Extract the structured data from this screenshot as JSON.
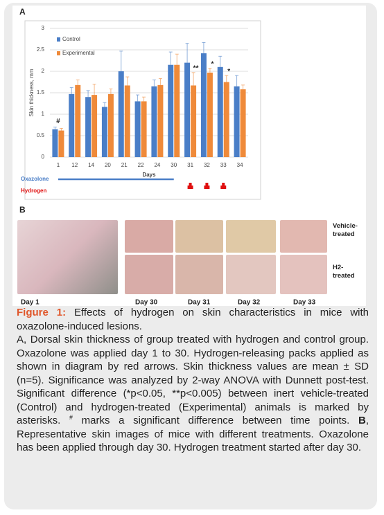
{
  "chart_data": {
    "type": "bar",
    "panel_label": "A",
    "categories": [
      "1",
      "12",
      "14",
      "20",
      "21",
      "22",
      "24",
      "30",
      "31",
      "32",
      "33",
      "34"
    ],
    "series": [
      {
        "name": "Control",
        "color": "#4a7ec7",
        "values": [
          0.65,
          1.47,
          1.4,
          1.17,
          2.0,
          1.3,
          1.65,
          2.15,
          2.2,
          2.42,
          2.1,
          1.65
        ],
        "errors": [
          0.05,
          0.15,
          0.15,
          0.1,
          0.47,
          0.15,
          0.15,
          0.3,
          0.45,
          0.25,
          0.25,
          0.25
        ]
      },
      {
        "name": "Experimental",
        "color": "#ef8a3a",
        "values": [
          0.62,
          1.68,
          1.45,
          1.47,
          1.67,
          1.3,
          1.68,
          2.15,
          1.67,
          1.97,
          1.75,
          1.58
        ],
        "errors": [
          0.05,
          0.12,
          0.25,
          0.12,
          0.2,
          0.1,
          0.15,
          0.25,
          0.3,
          0.1,
          0.15,
          0.1
        ]
      }
    ],
    "ylim": [
      0,
      3
    ],
    "yticks": [
      0,
      0.5,
      1,
      1.5,
      2,
      2.5,
      3
    ],
    "grid": true,
    "y_label": "Skin thickness, mm",
    "x_label": "Days",
    "legend": "top-left",
    "annotations": [
      {
        "text": "#",
        "category": "1"
      },
      {
        "text": "**",
        "category": "31"
      },
      {
        "text": "*",
        "category": "32"
      },
      {
        "text": "*",
        "category": "33"
      }
    ],
    "treatments": [
      {
        "name": "Oxazolone",
        "color": "#4a7ec7",
        "from": "1",
        "to": "30"
      },
      {
        "name": "Hydrogen",
        "color": "#e01010",
        "at": [
          "31",
          "32",
          "33"
        ]
      }
    ]
  },
  "panel_b": {
    "label": "B",
    "row_labels": [
      "Vehicle-treated",
      "H2-treated"
    ],
    "days": [
      "Day 1",
      "Day 30",
      "Day 31",
      "Day 32",
      "Day 33"
    ]
  },
  "caption": {
    "label": "Figure 1:",
    "title": "Effects of hydrogen on skin characteristics in mice with oxazolone-induced lesions.",
    "body": [
      {
        "text": "A, Dorsal skin thickness of group treated with hydrogen and control group. Oxazolone was applied day 1 to 30. Hydrogen-releasing packs applied as shown in diagram by red arrows. Skin thickness values are mean ± SD (n=5). Significance was analyzed by 2-way ANOVA with Dunnett post-test. Significant difference (*p<0.05, **p<0.005) between inert vehicle-treated (Control) and hydrogen-treated (Experimental) animals is marked by asterisks. "
      },
      {
        "text": "#",
        "sup": true
      },
      {
        "text": " marks a significant difference between time points. "
      },
      {
        "text": "B",
        "bold": true
      },
      {
        "text": ", Representative skin images of mice with different treatments. Oxazolone has been applied through day 30. Hydrogen treatment started after day 30."
      }
    ]
  }
}
